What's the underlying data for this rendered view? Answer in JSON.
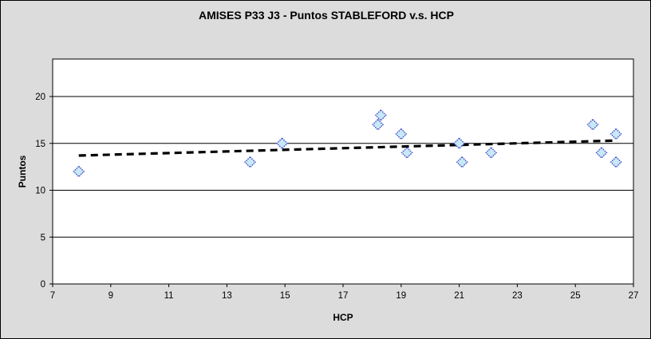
{
  "chart_data": {
    "type": "scatter",
    "title": "AMISES P33 J3 - Puntos STABLEFORD v.s. HCP",
    "xlabel": "HCP",
    "ylabel": "Puntos",
    "xlim": [
      7,
      27
    ],
    "ylim": [
      0,
      24
    ],
    "xticks": [
      7,
      9,
      11,
      13,
      15,
      17,
      19,
      21,
      23,
      25,
      27
    ],
    "yticks": [
      0,
      5,
      10,
      15,
      20
    ],
    "grid": "horizontal-only",
    "legend": "none",
    "series": [
      {
        "name": "Puntos STABLEFORD",
        "marker": "diamond",
        "points": [
          [
            7.9,
            12
          ],
          [
            13.8,
            13
          ],
          [
            14.9,
            15
          ],
          [
            18.2,
            17
          ],
          [
            18.3,
            18
          ],
          [
            19.0,
            16
          ],
          [
            19.2,
            14
          ],
          [
            21.0,
            15
          ],
          [
            21.1,
            13
          ],
          [
            22.1,
            14
          ],
          [
            25.6,
            17
          ],
          [
            25.9,
            14
          ],
          [
            26.4,
            16
          ],
          [
            26.4,
            13
          ]
        ]
      }
    ],
    "trendline": {
      "style": "dashed",
      "x1": 7.9,
      "y1": 13.7,
      "x2": 26.4,
      "y2": 15.3
    },
    "colors": {
      "chart_bg": "#DCDCDC",
      "plot_bg": "#FFFFFF",
      "axis": "#000000",
      "grid": "#000000",
      "marker_fill": "#C9E8F7",
      "marker_stroke": "#4353C6",
      "trendline": "#000000",
      "text": "#000000"
    }
  }
}
